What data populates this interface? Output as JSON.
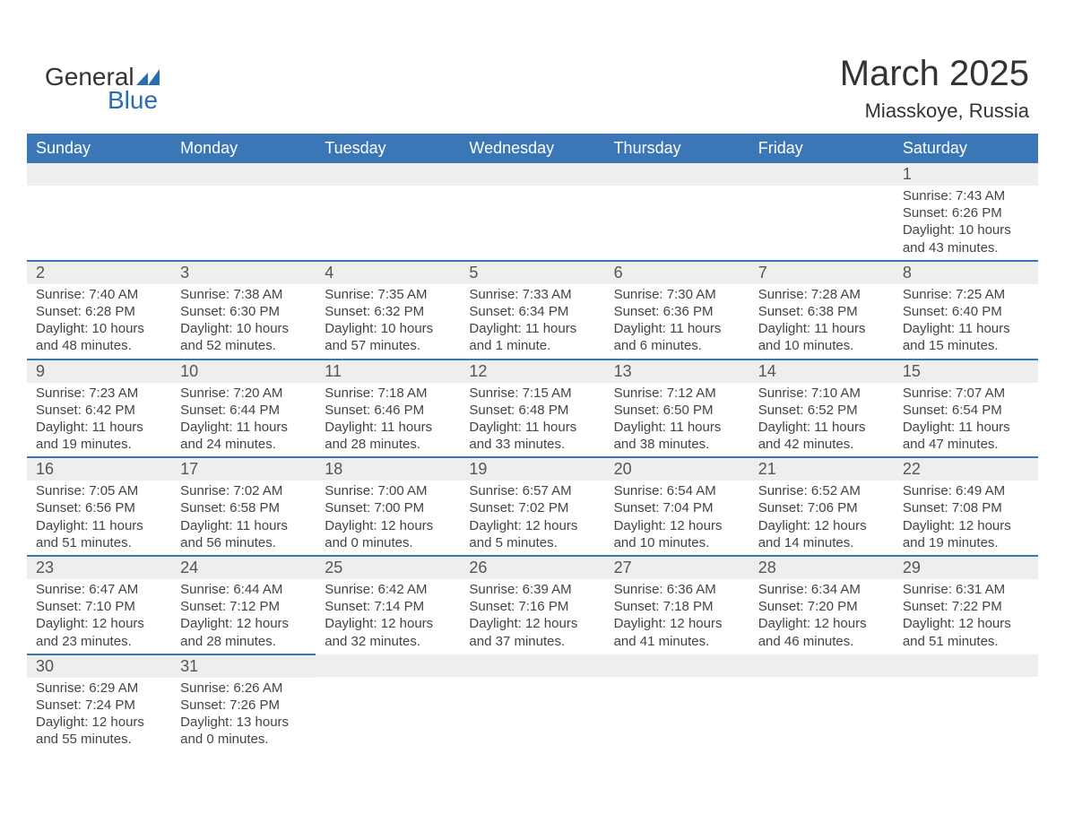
{
  "logo": {
    "word1": "General",
    "word2": "Blue",
    "shape_color": "#2a6db5"
  },
  "title": "March 2025",
  "location": "Miasskoye, Russia",
  "colors": {
    "header_bg": "#3b77b6",
    "header_text": "#ffffff",
    "daynum_bg": "#eeeeee",
    "border": "#3b77b6",
    "text": "#333333"
  },
  "weekdays": [
    "Sunday",
    "Monday",
    "Tuesday",
    "Wednesday",
    "Thursday",
    "Friday",
    "Saturday"
  ],
  "layout": {
    "first_weekday_index": 6,
    "days_in_month": 31
  },
  "days": {
    "1": {
      "sunrise": "7:43 AM",
      "sunset": "6:26 PM",
      "daylight": "10 hours and 43 minutes."
    },
    "2": {
      "sunrise": "7:40 AM",
      "sunset": "6:28 PM",
      "daylight": "10 hours and 48 minutes."
    },
    "3": {
      "sunrise": "7:38 AM",
      "sunset": "6:30 PM",
      "daylight": "10 hours and 52 minutes."
    },
    "4": {
      "sunrise": "7:35 AM",
      "sunset": "6:32 PM",
      "daylight": "10 hours and 57 minutes."
    },
    "5": {
      "sunrise": "7:33 AM",
      "sunset": "6:34 PM",
      "daylight": "11 hours and 1 minute."
    },
    "6": {
      "sunrise": "7:30 AM",
      "sunset": "6:36 PM",
      "daylight": "11 hours and 6 minutes."
    },
    "7": {
      "sunrise": "7:28 AM",
      "sunset": "6:38 PM",
      "daylight": "11 hours and 10 minutes."
    },
    "8": {
      "sunrise": "7:25 AM",
      "sunset": "6:40 PM",
      "daylight": "11 hours and 15 minutes."
    },
    "9": {
      "sunrise": "7:23 AM",
      "sunset": "6:42 PM",
      "daylight": "11 hours and 19 minutes."
    },
    "10": {
      "sunrise": "7:20 AM",
      "sunset": "6:44 PM",
      "daylight": "11 hours and 24 minutes."
    },
    "11": {
      "sunrise": "7:18 AM",
      "sunset": "6:46 PM",
      "daylight": "11 hours and 28 minutes."
    },
    "12": {
      "sunrise": "7:15 AM",
      "sunset": "6:48 PM",
      "daylight": "11 hours and 33 minutes."
    },
    "13": {
      "sunrise": "7:12 AM",
      "sunset": "6:50 PM",
      "daylight": "11 hours and 38 minutes."
    },
    "14": {
      "sunrise": "7:10 AM",
      "sunset": "6:52 PM",
      "daylight": "11 hours and 42 minutes."
    },
    "15": {
      "sunrise": "7:07 AM",
      "sunset": "6:54 PM",
      "daylight": "11 hours and 47 minutes."
    },
    "16": {
      "sunrise": "7:05 AM",
      "sunset": "6:56 PM",
      "daylight": "11 hours and 51 minutes."
    },
    "17": {
      "sunrise": "7:02 AM",
      "sunset": "6:58 PM",
      "daylight": "11 hours and 56 minutes."
    },
    "18": {
      "sunrise": "7:00 AM",
      "sunset": "7:00 PM",
      "daylight": "12 hours and 0 minutes."
    },
    "19": {
      "sunrise": "6:57 AM",
      "sunset": "7:02 PM",
      "daylight": "12 hours and 5 minutes."
    },
    "20": {
      "sunrise": "6:54 AM",
      "sunset": "7:04 PM",
      "daylight": "12 hours and 10 minutes."
    },
    "21": {
      "sunrise": "6:52 AM",
      "sunset": "7:06 PM",
      "daylight": "12 hours and 14 minutes."
    },
    "22": {
      "sunrise": "6:49 AM",
      "sunset": "7:08 PM",
      "daylight": "12 hours and 19 minutes."
    },
    "23": {
      "sunrise": "6:47 AM",
      "sunset": "7:10 PM",
      "daylight": "12 hours and 23 minutes."
    },
    "24": {
      "sunrise": "6:44 AM",
      "sunset": "7:12 PM",
      "daylight": "12 hours and 28 minutes."
    },
    "25": {
      "sunrise": "6:42 AM",
      "sunset": "7:14 PM",
      "daylight": "12 hours and 32 minutes."
    },
    "26": {
      "sunrise": "6:39 AM",
      "sunset": "7:16 PM",
      "daylight": "12 hours and 37 minutes."
    },
    "27": {
      "sunrise": "6:36 AM",
      "sunset": "7:18 PM",
      "daylight": "12 hours and 41 minutes."
    },
    "28": {
      "sunrise": "6:34 AM",
      "sunset": "7:20 PM",
      "daylight": "12 hours and 46 minutes."
    },
    "29": {
      "sunrise": "6:31 AM",
      "sunset": "7:22 PM",
      "daylight": "12 hours and 51 minutes."
    },
    "30": {
      "sunrise": "6:29 AM",
      "sunset": "7:24 PM",
      "daylight": "12 hours and 55 minutes."
    },
    "31": {
      "sunrise": "6:26 AM",
      "sunset": "7:26 PM",
      "daylight": "13 hours and 0 minutes."
    }
  },
  "labels": {
    "sunrise": "Sunrise: ",
    "sunset": "Sunset: ",
    "daylight": "Daylight: "
  }
}
